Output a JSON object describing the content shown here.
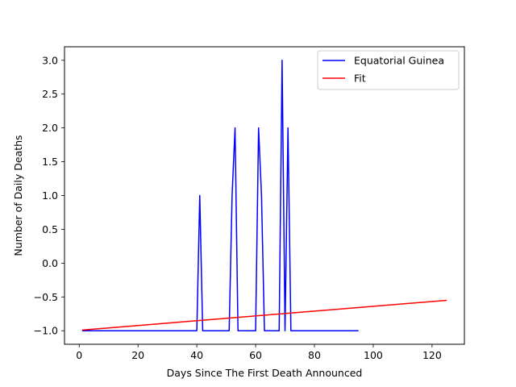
{
  "chart_data": {
    "type": "line",
    "title": "",
    "xlabel": "Days Since The First Death Announced",
    "ylabel": "Number of Daily Deaths",
    "xlim": [
      -5,
      131
    ],
    "ylim": [
      -1.2,
      3.2
    ],
    "xticks": [
      0,
      20,
      40,
      60,
      80,
      100,
      120
    ],
    "yticks": [
      -1.0,
      -0.5,
      0.0,
      0.5,
      1.0,
      1.5,
      2.0,
      2.5,
      3.0
    ],
    "xtick_labels": [
      "0",
      "20",
      "40",
      "60",
      "80",
      "100",
      "120"
    ],
    "ytick_labels": [
      "−1.0",
      "−0.5",
      "0.0",
      "0.5",
      "1.0",
      "1.5",
      "2.0",
      "2.5",
      "3.0"
    ],
    "grid": false,
    "legend_position": "top-right",
    "series": [
      {
        "name": "Equatorial Guinea",
        "color": "#0000ff",
        "x": [
          1,
          40,
          41,
          42,
          51,
          52,
          53,
          54,
          60,
          61,
          62,
          63,
          68,
          69,
          70,
          71,
          72,
          95
        ],
        "y": [
          -1,
          -1,
          1,
          -1,
          -1,
          1,
          2,
          -1,
          -1,
          2,
          1,
          -1,
          -1,
          3,
          -1,
          2,
          -1,
          -1
        ]
      },
      {
        "name": "Fit",
        "color": "#ff0000",
        "x": [
          1,
          125
        ],
        "y": [
          -0.99,
          -0.55
        ]
      }
    ]
  }
}
